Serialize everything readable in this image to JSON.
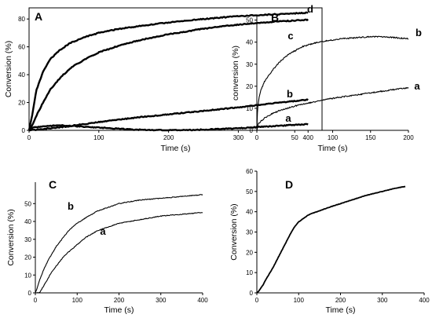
{
  "chart_data": [
    {
      "type": "line",
      "panel_label": "A",
      "xlabel": "Time (s)",
      "ylabel": "Conversion (%)",
      "xlim": [
        0,
        420
      ],
      "ylim": [
        0,
        88
      ],
      "xticks": [
        0,
        100,
        200,
        300,
        400
      ],
      "yticks": [
        0,
        20,
        40,
        60,
        80
      ],
      "series": [
        {
          "name": "d",
          "x": [
            0,
            5,
            10,
            20,
            30,
            45,
            60,
            80,
            100,
            130,
            160,
            200,
            250,
            300,
            350,
            400
          ],
          "y": [
            0,
            12,
            28,
            42,
            51,
            58,
            63,
            67,
            70,
            73,
            75,
            77.5,
            80,
            82,
            83.3,
            84.5
          ]
        },
        {
          "name": "c",
          "x": [
            0,
            5,
            10,
            20,
            30,
            45,
            60,
            80,
            100,
            130,
            160,
            200,
            250,
            300,
            350,
            400
          ],
          "y": [
            0,
            4,
            10,
            20,
            29,
            38,
            45,
            51,
            56,
            61,
            65,
            69,
            73,
            76,
            78,
            79.5
          ]
        },
        {
          "name": "b",
          "x": [
            0,
            20,
            50,
            100,
            150,
            200,
            250,
            300,
            350,
            400
          ],
          "y": [
            0,
            1,
            2.5,
            6,
            9,
            11.5,
            14,
            16.5,
            19.5,
            22
          ]
        },
        {
          "name": "a",
          "x": [
            0,
            20,
            50,
            100,
            150,
            200,
            250,
            300,
            350,
            400
          ],
          "y": [
            1.5,
            3,
            3.5,
            2,
            0.5,
            0,
            0.5,
            1.5,
            3,
            4.5
          ]
        }
      ]
    },
    {
      "type": "line",
      "panel_label": "B",
      "xlabel": "Time (s)",
      "ylabel": "conversion (%)",
      "xlim": [
        0,
        200
      ],
      "ylim": [
        0,
        52
      ],
      "xticks": [
        0,
        50,
        100,
        150,
        200
      ],
      "yticks": [
        0,
        10,
        20,
        30,
        40,
        50
      ],
      "series": [
        {
          "name": "b",
          "x": [
            0,
            1,
            3,
            5,
            10,
            20,
            30,
            40,
            50,
            60,
            75,
            90,
            110,
            130,
            150,
            170,
            185,
            200
          ],
          "y": [
            0,
            10,
            15,
            18,
            22,
            27,
            31,
            34,
            36,
            38,
            39.5,
            40.5,
            41.5,
            42,
            42.5,
            42.3,
            42,
            41.5
          ]
        },
        {
          "name": "a",
          "x": [
            0,
            2,
            5,
            10,
            20,
            30,
            40,
            50,
            70,
            90,
            110,
            130,
            150,
            170,
            185,
            200
          ],
          "y": [
            0,
            3,
            4,
            5.5,
            7.5,
            9,
            10,
            11,
            12.5,
            14,
            15,
            16,
            17,
            18,
            18.7,
            19.2
          ]
        }
      ]
    },
    {
      "type": "line",
      "panel_label": "C",
      "xlabel": "Time (s)",
      "ylabel": "Conversion (%)",
      "xlim": [
        0,
        400
      ],
      "ylim": [
        0,
        62
      ],
      "xticks": [
        0,
        100,
        200,
        300,
        400
      ],
      "yticks": [
        0,
        10,
        20,
        30,
        40,
        50
      ],
      "series": [
        {
          "name": "b",
          "x": [
            0,
            5,
            10,
            20,
            30,
            40,
            50,
            60,
            70,
            80,
            100,
            120,
            150,
            200,
            250,
            300,
            350,
            400
          ],
          "y": [
            0,
            3,
            7,
            13,
            18,
            22,
            26,
            29,
            32,
            35,
            39,
            42,
            46,
            50,
            52,
            53,
            54,
            55
          ]
        },
        {
          "name": "a",
          "x": [
            0,
            10,
            15,
            20,
            25,
            30,
            40,
            50,
            60,
            70,
            80,
            100,
            120,
            150,
            200,
            250,
            300,
            350,
            400
          ],
          "y": [
            0,
            0,
            2,
            4,
            6,
            8,
            12,
            15,
            18,
            21,
            23,
            27,
            31,
            35,
            39,
            41,
            43,
            44,
            45
          ]
        }
      ]
    },
    {
      "type": "line",
      "panel_label": "D",
      "xlabel": "Time (s)",
      "ylabel": "Conversion (%)",
      "xlim": [
        0,
        400
      ],
      "ylim": [
        0,
        60
      ],
      "xticks": [
        0,
        100,
        200,
        300,
        400
      ],
      "yticks": [
        0,
        10,
        20,
        30,
        40,
        50,
        60
      ],
      "series": [
        {
          "x": [
            0,
            5,
            10,
            15,
            20,
            30,
            40,
            50,
            60,
            70,
            80,
            90,
            100,
            110,
            120,
            130,
            150,
            170,
            200,
            230,
            260,
            300,
            330,
            355
          ],
          "y": [
            0,
            1,
            2.5,
            4,
            6,
            9.5,
            13,
            17,
            21,
            25,
            29,
            32.5,
            35,
            36.5,
            38,
            39,
            40.5,
            42,
            44,
            46,
            48,
            50,
            51.5,
            52.5
          ]
        }
      ]
    }
  ]
}
